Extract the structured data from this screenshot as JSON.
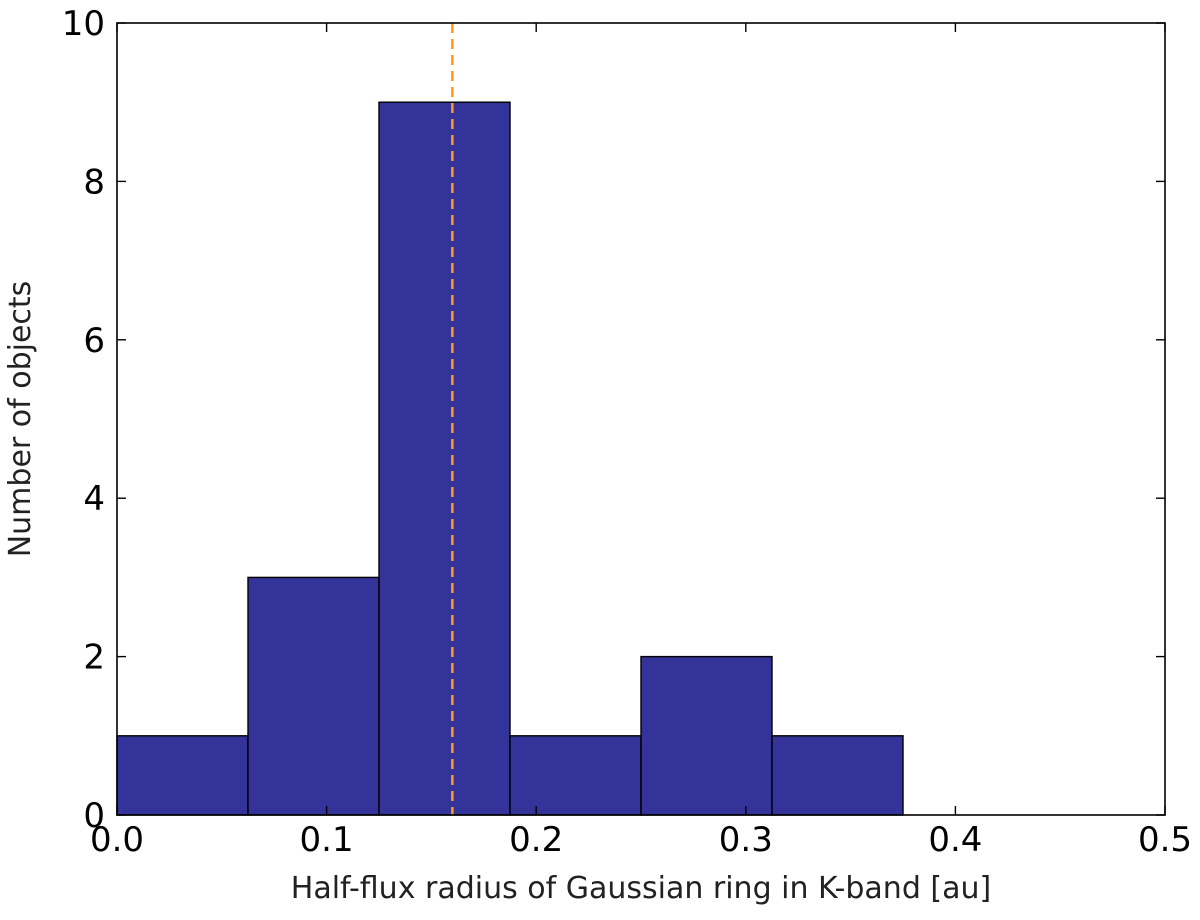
{
  "chart_data": {
    "type": "bar",
    "subtype": "histogram",
    "bins": [
      {
        "x0": 0.0,
        "x1": 0.0625,
        "value": 1
      },
      {
        "x0": 0.0625,
        "x1": 0.125,
        "value": 3
      },
      {
        "x0": 0.125,
        "x1": 0.1875,
        "value": 9
      },
      {
        "x0": 0.1875,
        "x1": 0.25,
        "value": 1
      },
      {
        "x0": 0.25,
        "x1": 0.3125,
        "value": 2
      },
      {
        "x0": 0.3125,
        "x1": 0.375,
        "value": 1
      }
    ],
    "reference_line": {
      "x": 0.16,
      "style": "dashed",
      "color": "#ff9a1f"
    },
    "xlabel": "Half-flux radius of Gaussian ring in K-band [au]",
    "ylabel": "Number of objects",
    "xlim": [
      0.0,
      0.5
    ],
    "ylim": [
      0,
      10
    ],
    "xticks": [
      "0.0",
      "0.1",
      "0.2",
      "0.3",
      "0.4",
      "0.5"
    ],
    "yticks": [
      "0",
      "2",
      "4",
      "6",
      "8",
      "10"
    ],
    "bar_color": "#333399",
    "grid": false,
    "legend": "none"
  }
}
